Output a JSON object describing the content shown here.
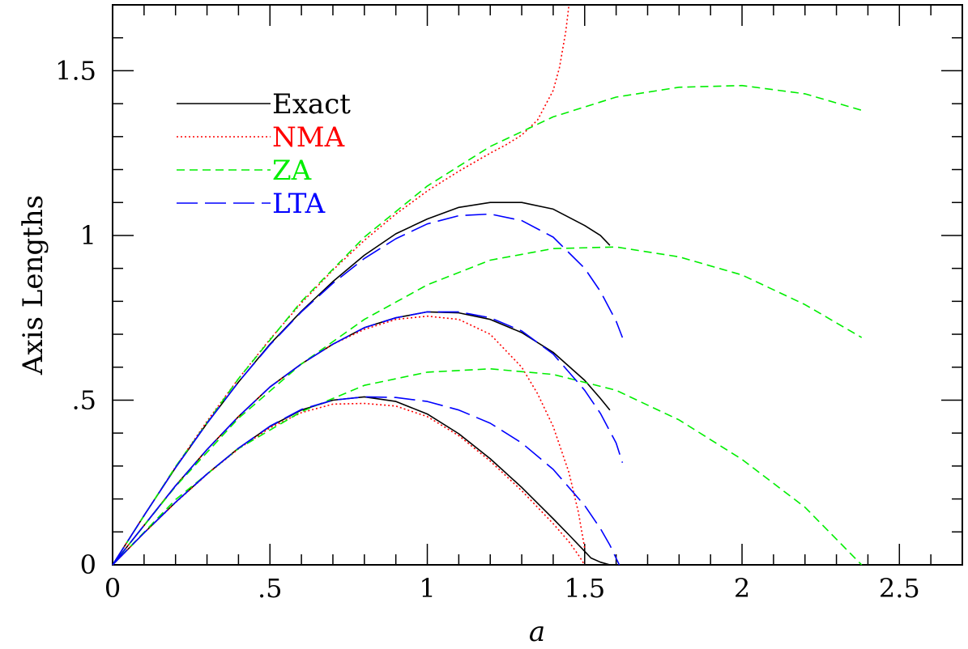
{
  "chart_data": {
    "type": "line",
    "xlabel": "a",
    "ylabel": "Axis Lengths",
    "xlim": [
      0,
      2.7
    ],
    "ylim": [
      0,
      1.7
    ],
    "x_ticks": [
      {
        "value": 0,
        "label": "0"
      },
      {
        "value": 0.5,
        "label": ".5"
      },
      {
        "value": 1,
        "label": "1"
      },
      {
        "value": 1.5,
        "label": "1.5"
      },
      {
        "value": 2,
        "label": "2"
      },
      {
        "value": 2.5,
        "label": "2.5"
      }
    ],
    "y_ticks": [
      {
        "value": 0,
        "label": "0"
      },
      {
        "value": 0.5,
        "label": ".5"
      },
      {
        "value": 1,
        "label": "1"
      },
      {
        "value": 1.5,
        "label": "1.5"
      }
    ],
    "x_minor_step": 0.1,
    "y_minor_step": 0.1,
    "grid": false,
    "legend_position": "top-left",
    "legend": [
      {
        "label": "Exact",
        "color": "#000000",
        "dash": "solid"
      },
      {
        "label": "NMA",
        "color": "#ff0000",
        "dash": "dotted"
      },
      {
        "label": "ZA",
        "color": "#00ee00",
        "dash": "dashed"
      },
      {
        "label": "LTA",
        "color": "#0000ff",
        "dash": "long-dashed"
      }
    ],
    "series": [
      {
        "name": "Exact",
        "color": "#000000",
        "dash": "solid",
        "x": [
          0,
          0.1,
          0.2,
          0.3,
          0.4,
          0.5,
          0.6,
          0.7,
          0.8,
          0.9,
          1.0,
          1.1,
          1.2,
          1.3,
          1.4,
          1.45,
          1.5,
          1.52,
          1.55,
          1.58
        ],
        "y": [
          0,
          0.097,
          0.19,
          0.276,
          0.354,
          0.42,
          0.47,
          0.5,
          0.51,
          0.496,
          0.458,
          0.398,
          0.322,
          0.235,
          0.14,
          0.091,
          0.041,
          0.021,
          0.008,
          0
        ]
      },
      {
        "name": "Exact",
        "color": "#000000",
        "dash": "solid",
        "x": [
          0,
          0.1,
          0.2,
          0.3,
          0.4,
          0.5,
          0.6,
          0.7,
          0.8,
          0.9,
          1.0,
          1.1,
          1.2,
          1.3,
          1.4,
          1.5,
          1.55,
          1.58
        ],
        "y": [
          0,
          0.12,
          0.24,
          0.35,
          0.45,
          0.54,
          0.61,
          0.67,
          0.72,
          0.75,
          0.768,
          0.765,
          0.745,
          0.705,
          0.645,
          0.56,
          0.505,
          0.47
        ]
      },
      {
        "name": "Exact",
        "color": "#000000",
        "dash": "solid",
        "x": [
          0,
          0.1,
          0.2,
          0.3,
          0.4,
          0.5,
          0.6,
          0.7,
          0.8,
          0.9,
          1.0,
          1.1,
          1.2,
          1.3,
          1.4,
          1.5,
          1.55,
          1.58
        ],
        "y": [
          0,
          0.15,
          0.295,
          0.43,
          0.555,
          0.67,
          0.77,
          0.86,
          0.94,
          1.005,
          1.05,
          1.085,
          1.1,
          1.1,
          1.08,
          1.03,
          1.0,
          0.97
        ]
      },
      {
        "name": "NMA",
        "color": "#ff0000",
        "dash": "dotted",
        "x": [
          0,
          0.1,
          0.2,
          0.3,
          0.4,
          0.5,
          0.6,
          0.7,
          0.8,
          0.9,
          1.0,
          1.1,
          1.2,
          1.3,
          1.4,
          1.45,
          1.48,
          1.5
        ],
        "y": [
          0,
          0.097,
          0.189,
          0.275,
          0.352,
          0.416,
          0.462,
          0.488,
          0.49,
          0.482,
          0.45,
          0.392,
          0.315,
          0.225,
          0.125,
          0.07,
          0.03,
          0
        ]
      },
      {
        "name": "NMA",
        "color": "#ff0000",
        "dash": "dotted",
        "x": [
          0,
          0.1,
          0.2,
          0.3,
          0.4,
          0.5,
          0.6,
          0.7,
          0.8,
          0.9,
          1.0,
          1.1,
          1.2,
          1.3,
          1.35,
          1.4,
          1.45,
          1.48,
          1.5
        ],
        "y": [
          0,
          0.12,
          0.24,
          0.35,
          0.45,
          0.54,
          0.61,
          0.67,
          0.715,
          0.745,
          0.755,
          0.745,
          0.7,
          0.6,
          0.52,
          0.42,
          0.28,
          0.16,
          0.05
        ]
      },
      {
        "name": "NMA",
        "color": "#ff0000",
        "dash": "dotted",
        "x": [
          0,
          0.1,
          0.2,
          0.3,
          0.4,
          0.5,
          0.6,
          0.7,
          0.8,
          0.9,
          1.0,
          1.1,
          1.2,
          1.25,
          1.3,
          1.35,
          1.4,
          1.42,
          1.44,
          1.45
        ],
        "y": [
          0,
          0.15,
          0.297,
          0.436,
          0.565,
          0.685,
          0.795,
          0.895,
          0.985,
          1.065,
          1.135,
          1.195,
          1.25,
          1.275,
          1.305,
          1.35,
          1.44,
          1.51,
          1.62,
          1.7
        ]
      },
      {
        "name": "ZA",
        "color": "#00ee00",
        "dash": "dashed",
        "x": [
          0,
          0.2,
          0.4,
          0.6,
          0.8,
          1.0,
          1.2,
          1.4,
          1.6,
          1.8,
          2.0,
          2.2,
          2.38
        ],
        "y": [
          0,
          0.198,
          0.353,
          0.465,
          0.545,
          0.585,
          0.595,
          0.578,
          0.53,
          0.44,
          0.32,
          0.175,
          0
        ]
      },
      {
        "name": "ZA",
        "color": "#00ee00",
        "dash": "dashed",
        "x": [
          0,
          0.2,
          0.4,
          0.6,
          0.8,
          1.0,
          1.2,
          1.4,
          1.6,
          1.8,
          2.0,
          2.2,
          2.38
        ],
        "y": [
          0,
          0.238,
          0.445,
          0.61,
          0.745,
          0.85,
          0.925,
          0.96,
          0.965,
          0.935,
          0.88,
          0.79,
          0.69
        ]
      },
      {
        "name": "ZA",
        "color": "#00ee00",
        "dash": "dashed",
        "x": [
          0,
          0.2,
          0.4,
          0.6,
          0.8,
          1.0,
          1.2,
          1.4,
          1.6,
          1.8,
          2.0,
          2.2,
          2.38
        ],
        "y": [
          0,
          0.298,
          0.565,
          0.8,
          0.995,
          1.15,
          1.27,
          1.36,
          1.42,
          1.45,
          1.455,
          1.43,
          1.38
        ]
      },
      {
        "name": "LTA",
        "color": "#0000ff",
        "dash": "long-dashed",
        "x": [
          0,
          0.1,
          0.2,
          0.3,
          0.4,
          0.5,
          0.6,
          0.7,
          0.8,
          0.9,
          1.0,
          1.1,
          1.2,
          1.3,
          1.4,
          1.5,
          1.55,
          1.58,
          1.61
        ],
        "y": [
          0,
          0.097,
          0.19,
          0.276,
          0.354,
          0.421,
          0.472,
          0.5,
          0.51,
          0.508,
          0.496,
          0.47,
          0.43,
          0.37,
          0.29,
          0.18,
          0.11,
          0.06,
          0
        ]
      },
      {
        "name": "LTA",
        "color": "#0000ff",
        "dash": "long-dashed",
        "x": [
          0,
          0.1,
          0.2,
          0.3,
          0.4,
          0.5,
          0.6,
          0.7,
          0.8,
          0.9,
          1.0,
          1.1,
          1.2,
          1.3,
          1.4,
          1.5,
          1.55,
          1.6,
          1.62
        ],
        "y": [
          0,
          0.12,
          0.24,
          0.35,
          0.45,
          0.54,
          0.61,
          0.67,
          0.72,
          0.75,
          0.768,
          0.768,
          0.75,
          0.71,
          0.64,
          0.53,
          0.46,
          0.37,
          0.31
        ]
      },
      {
        "name": "LTA",
        "color": "#0000ff",
        "dash": "long-dashed",
        "x": [
          0,
          0.1,
          0.2,
          0.3,
          0.4,
          0.5,
          0.6,
          0.7,
          0.8,
          0.9,
          1.0,
          1.1,
          1.2,
          1.3,
          1.4,
          1.5,
          1.55,
          1.6,
          1.62
        ],
        "y": [
          0,
          0.15,
          0.295,
          0.43,
          0.555,
          0.668,
          0.768,
          0.855,
          0.93,
          0.99,
          1.035,
          1.06,
          1.065,
          1.045,
          0.995,
          0.9,
          0.83,
          0.74,
          0.69
        ]
      }
    ]
  }
}
